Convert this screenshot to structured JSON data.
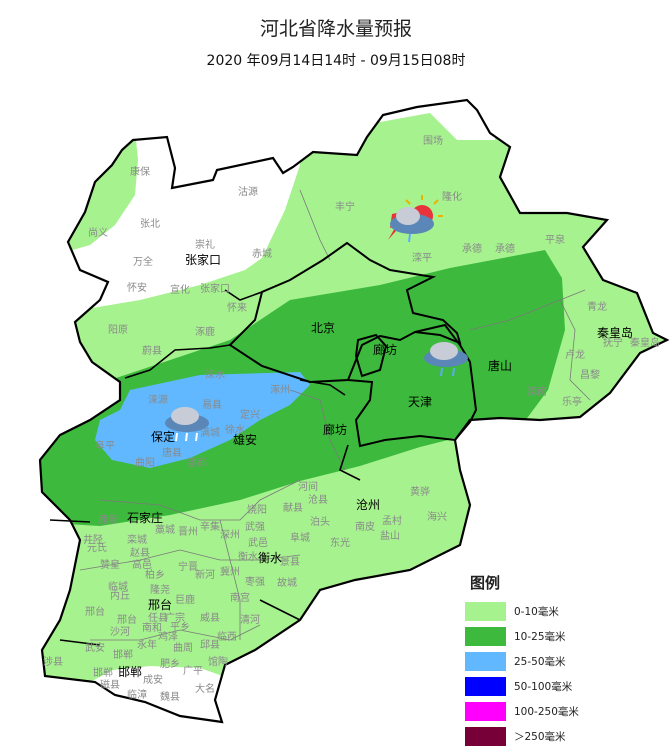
{
  "header": {
    "title": "河北省降水量预报",
    "subtitle": "2020 年09月14日14时 - 09月15日08时"
  },
  "map": {
    "zone_colors": {
      "none": "#ffffff",
      "0-10": "#a6f28f",
      "10-25": "#3dba3d",
      "25-50": "#61b8ff"
    },
    "cities": [
      "张家口",
      "北京",
      "廊坊",
      "天津",
      "唐山",
      "秦皇岛",
      "保定",
      "雄安",
      "廊坊",
      "沧州",
      "石家庄",
      "衡水",
      "邢台",
      "邯郸"
    ],
    "counties": [
      "康保",
      "沽源",
      "尚义",
      "张北",
      "崇礼",
      "万全",
      "怀安",
      "宣化",
      "张家口",
      "赤城",
      "怀来",
      "阳原",
      "涿鹿",
      "蔚县",
      "丰宁",
      "围场",
      "隆化",
      "滦平",
      "承德",
      "承德",
      "平泉",
      "青龙",
      "抚宁",
      "秦皇岛",
      "卢龙",
      "昌黎",
      "乐亭",
      "滦南",
      "涞水",
      "涿州",
      "涞源",
      "易县",
      "定兴",
      "徐水",
      "满城",
      "阜平",
      "唐县",
      "曲阳",
      "望都",
      "河间",
      "沧县",
      "献县",
      "饶阳",
      "泊头",
      "武强",
      "武邑",
      "阜城",
      "东光",
      "南皮",
      "孟村",
      "盐山",
      "黄骅",
      "海兴",
      "鹿泉",
      "井陉",
      "藁城",
      "晋州",
      "辛集",
      "深州",
      "元氏",
      "栾城",
      "赵县",
      "衡水",
      "景县",
      "赞皇",
      "高邑",
      "柏乡",
      "宁晋",
      "新河",
      "冀州",
      "枣强",
      "故城",
      "临城",
      "内丘",
      "隆尧",
      "巨鹿",
      "南宫",
      "邢台",
      "邢台",
      "任县",
      "南和",
      "平乡",
      "广宗",
      "威县",
      "清河",
      "沙河",
      "永年",
      "鸡泽",
      "曲周",
      "邱县",
      "临西",
      "武安",
      "邯郸",
      "涉县",
      "肥乡",
      "广平",
      "馆陶",
      "邯郸",
      "磁县",
      "成安",
      "临漳",
      "魏县",
      "大名"
    ],
    "weather_icons": [
      "thunderstorm-sun-icon",
      "cloud-rain-icon",
      "cloud-heavy-rain-icon"
    ]
  },
  "legend": {
    "title": "图例",
    "items": [
      {
        "label": "0-10毫米",
        "color": "#a6f28f"
      },
      {
        "label": "10-25毫米",
        "color": "#3dba3d"
      },
      {
        "label": "25-50毫米",
        "color": "#61b8ff"
      },
      {
        "label": "50-100毫米",
        "color": "#0000ff"
      },
      {
        "label": "100-250毫米",
        "color": "#ff00ff"
      },
      {
        "label": "＞250毫米",
        "color": "#770038"
      }
    ]
  }
}
